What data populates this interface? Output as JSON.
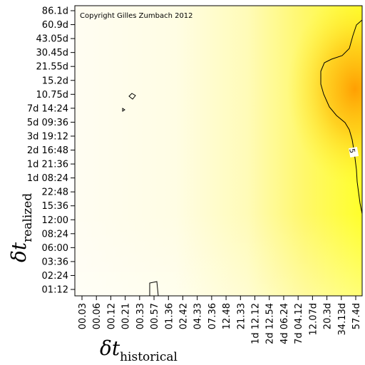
{
  "chart_data": {
    "type": "heatmap",
    "copyright": "Copyright Gilles Zumbach 2012",
    "xlabel": {
      "symbol": "δt",
      "subscript": "historical"
    },
    "ylabel": {
      "symbol": "δt",
      "subscript": "realized"
    },
    "x_ticks": [
      "00.03",
      "00.06",
      "00.12",
      "00.21",
      "00.33",
      "00.57",
      "01.36",
      "02.42",
      "04.33",
      "07.36",
      "12.48",
      "21.33",
      "1d 12.12",
      "2d 12.54",
      "4d 06.24",
      "7d 04.12",
      "12.07d",
      "20.3d",
      "34.13d",
      "57.4d"
    ],
    "y_ticks": [
      "01:12",
      "02:24",
      "03:36",
      "06:00",
      "08:24",
      "12:00",
      "15:36",
      "22:48",
      "1d 08:24",
      "1d 21:36",
      "2d 16:48",
      "3d 19:12",
      "5d 09:36",
      "7d 14:24",
      "10.75d",
      "15.2d",
      "21.55d",
      "30.45d",
      "43.05d",
      "60.9d",
      "86.1d"
    ],
    "contour_label": "5",
    "colors": {
      "low": "#fffdf2",
      "mid": "#ffff33",
      "high": "#ff9a00",
      "contour": "#000000"
    }
  }
}
